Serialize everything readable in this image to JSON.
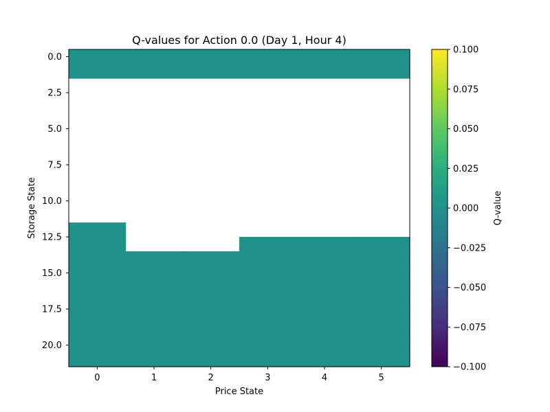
{
  "chart_data": {
    "type": "heatmap",
    "title": "Q-values for Action 0.0 (Day 1, Hour 4)",
    "xlabel": "Price State",
    "ylabel": "Storage State",
    "x_categories": [
      0,
      1,
      2,
      3,
      4,
      5
    ],
    "x_tick_labels": [
      "0",
      "1",
      "2",
      "3",
      "4",
      "5"
    ],
    "y_rows": [
      0,
      1,
      2,
      3,
      4,
      5,
      6,
      7,
      8,
      9,
      10,
      11,
      12,
      13,
      14,
      15,
      16,
      17,
      18,
      19,
      20,
      21
    ],
    "y_tick_values": [
      0.0,
      2.5,
      5.0,
      7.5,
      10.0,
      12.5,
      15.0,
      17.5,
      20.0
    ],
    "y_tick_labels": [
      "0.0",
      "2.5",
      "5.0",
      "7.5",
      "10.0",
      "12.5",
      "15.0",
      "17.5",
      "20.0"
    ],
    "missing_value_note": null,
    "values": [
      [
        0,
        0,
        0,
        0,
        0,
        0
      ],
      [
        0,
        0,
        0,
        0,
        0,
        0
      ],
      [
        null,
        null,
        null,
        null,
        null,
        null
      ],
      [
        null,
        null,
        null,
        null,
        null,
        null
      ],
      [
        null,
        null,
        null,
        null,
        null,
        null
      ],
      [
        null,
        null,
        null,
        null,
        null,
        null
      ],
      [
        null,
        null,
        null,
        null,
        null,
        null
      ],
      [
        null,
        null,
        null,
        null,
        null,
        null
      ],
      [
        null,
        null,
        null,
        null,
        null,
        null
      ],
      [
        null,
        null,
        null,
        null,
        null,
        null
      ],
      [
        null,
        null,
        null,
        null,
        null,
        null
      ],
      [
        null,
        null,
        null,
        null,
        null,
        null
      ],
      [
        0,
        null,
        null,
        null,
        null,
        null
      ],
      [
        0,
        null,
        null,
        0,
        0,
        0
      ],
      [
        0,
        0,
        0,
        0,
        0,
        0
      ],
      [
        0,
        0,
        0,
        0,
        0,
        0
      ],
      [
        0,
        0,
        0,
        0,
        0,
        0
      ],
      [
        0,
        0,
        0,
        0,
        0,
        0
      ],
      [
        0,
        0,
        0,
        0,
        0,
        0
      ],
      [
        0,
        0,
        0,
        0,
        0,
        0
      ],
      [
        0,
        0,
        0,
        0,
        0,
        0
      ],
      [
        0,
        0,
        0,
        0,
        0,
        0
      ]
    ],
    "colormap": "viridis",
    "vmin": -0.1,
    "vmax": 0.1,
    "colorbar": {
      "label": "Q-value",
      "tick_values": [
        0.1,
        0.075,
        0.05,
        0.025,
        0.0,
        -0.025,
        -0.05,
        -0.075,
        -0.1
      ],
      "tick_labels": [
        "0.100",
        "0.075",
        "0.050",
        "0.025",
        "0.000",
        "−0.025",
        "−0.050",
        "−0.075",
        "−0.100"
      ]
    },
    "grid": false
  }
}
